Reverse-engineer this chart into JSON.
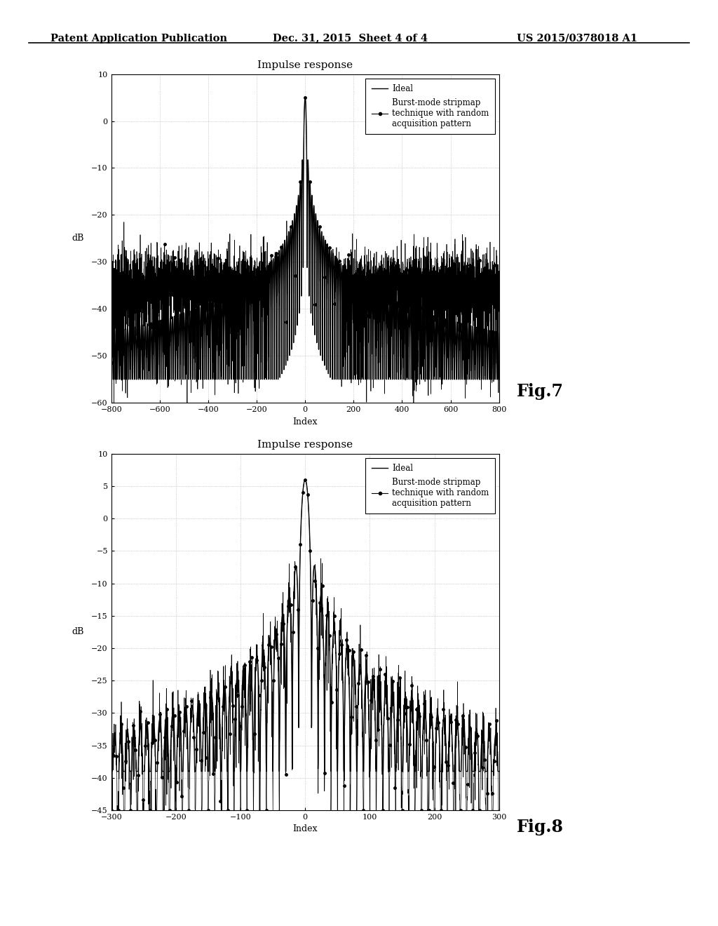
{
  "header_left": "Patent Application Publication",
  "header_center": "Dec. 31, 2015  Sheet 4 of 4",
  "header_right": "US 2015/0378018 A1",
  "fig7": {
    "title": "Impulse response",
    "xlabel": "Index",
    "ylabel": "dB",
    "xlim": [
      -800,
      800
    ],
    "ylim": [
      -60,
      10
    ],
    "xticks": [
      -800,
      -600,
      -400,
      -200,
      0,
      200,
      400,
      600,
      800
    ],
    "yticks": [
      -60,
      -50,
      -40,
      -30,
      -20,
      -10,
      0,
      10
    ],
    "legend_ideal": "Ideal",
    "legend_burst": "Burst-mode stripmap\ntechnique with random\nacquisition pattern",
    "fig_label": "Fig.7"
  },
  "fig8": {
    "title": "Impulse response",
    "xlabel": "Index",
    "ylabel": "dB",
    "xlim": [
      -300,
      300
    ],
    "ylim": [
      -45,
      10
    ],
    "xticks": [
      -300,
      -200,
      -100,
      0,
      100,
      200,
      300
    ],
    "yticks": [
      -45,
      -40,
      -35,
      -30,
      -25,
      -20,
      -15,
      -10,
      -5,
      0,
      5,
      10
    ],
    "legend_ideal": "Ideal",
    "legend_burst": "Burst-mode stripmap\ntechnique with random\nacquisition pattern",
    "fig_label": "Fig.8"
  }
}
